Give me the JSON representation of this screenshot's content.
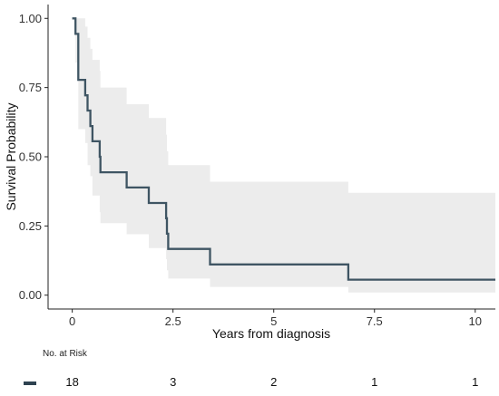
{
  "chart_data": {
    "type": "line",
    "subtype": "kaplan-meier",
    "title": "",
    "xlabel": "Years from diagnosis",
    "ylabel": "Survival Probability",
    "xlim": [
      -0.6,
      10.5
    ],
    "ylim": [
      -0.05,
      1.05
    ],
    "x_ticks": [
      0,
      2.5,
      5,
      7.5,
      10
    ],
    "x_tick_labels": [
      "0",
      "2.5",
      "5",
      "7.5",
      "10"
    ],
    "y_ticks": [
      0,
      0.25,
      0.5,
      0.75,
      1.0
    ],
    "y_tick_labels": [
      "0.00",
      "0.25",
      "0.50",
      "0.75",
      "1.00"
    ],
    "grid": false,
    "line_color": "#3f5563",
    "band_color": "#ececec",
    "series": [
      {
        "steps": [
          {
            "x": 0.0,
            "y": 1.0,
            "lower": 1.0,
            "upper": 1.0
          },
          {
            "x": 0.08,
            "y": 0.944,
            "lower": 0.84,
            "upper": 1.0
          },
          {
            "x": 0.15,
            "y": 0.778,
            "lower": 0.6,
            "upper": 1.0
          },
          {
            "x": 0.32,
            "y": 0.722,
            "lower": 0.55,
            "upper": 0.97
          },
          {
            "x": 0.38,
            "y": 0.667,
            "lower": 0.47,
            "upper": 0.93
          },
          {
            "x": 0.45,
            "y": 0.611,
            "lower": 0.43,
            "upper": 0.89
          },
          {
            "x": 0.5,
            "y": 0.556,
            "lower": 0.36,
            "upper": 0.85
          },
          {
            "x": 0.68,
            "y": 0.5,
            "lower": 0.3,
            "upper": 0.81
          },
          {
            "x": 0.7,
            "y": 0.444,
            "lower": 0.26,
            "upper": 0.75
          },
          {
            "x": 1.35,
            "y": 0.389,
            "lower": 0.22,
            "upper": 0.69
          },
          {
            "x": 1.9,
            "y": 0.333,
            "lower": 0.17,
            "upper": 0.64
          },
          {
            "x": 2.33,
            "y": 0.278,
            "lower": 0.13,
            "upper": 0.58
          },
          {
            "x": 2.35,
            "y": 0.222,
            "lower": 0.09,
            "upper": 0.52
          },
          {
            "x": 2.38,
            "y": 0.167,
            "lower": 0.06,
            "upper": 0.47
          },
          {
            "x": 3.42,
            "y": 0.111,
            "lower": 0.03,
            "upper": 0.41
          },
          {
            "x": 6.85,
            "y": 0.056,
            "lower": 0.01,
            "upper": 0.37
          },
          {
            "x": 10.5,
            "y": 0.056,
            "lower": 0.01,
            "upper": 0.37
          }
        ]
      }
    ]
  },
  "risk_table": {
    "title": "No. at Risk",
    "swatch_color": "#2e4250",
    "times": [
      0,
      2.5,
      5,
      7.5,
      10
    ],
    "counts": [
      "18",
      "3",
      "2",
      "1",
      "1"
    ]
  }
}
